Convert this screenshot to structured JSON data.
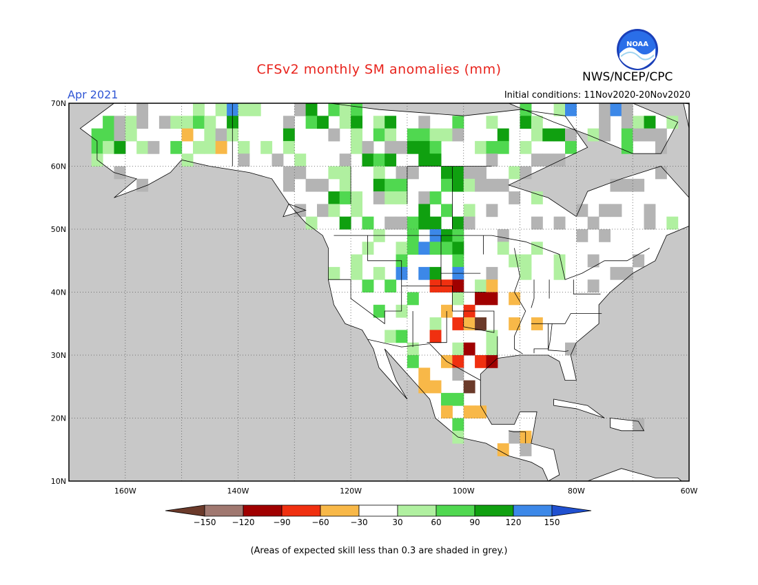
{
  "title": "CFSv2 monthly SM anomalies (mm)",
  "valid_month": "Apr 2021",
  "initial_conditions": "Initial conditions: 11Nov2020-20Nov2020",
  "organization": "NWS/NCEP/CPC",
  "logo_text": "NOAA",
  "map": {
    "lat_labels": [
      "70N",
      "60N",
      "50N",
      "40N",
      "30N",
      "20N",
      "10N"
    ],
    "lon_labels": [
      "160W",
      "140W",
      "120W",
      "100W",
      "80W",
      "60W"
    ],
    "lat_range": [
      10,
      70
    ],
    "lon_range": [
      -170,
      -60
    ],
    "grid": "dotted"
  },
  "colorbar": {
    "labels": [
      "-150",
      "-120",
      "-90",
      "-60",
      "-30",
      "30",
      "60",
      "90",
      "120",
      "150"
    ],
    "colors": [
      "#6b3a2a",
      "#a07870",
      "#a00000",
      "#f03010",
      "#f8b848",
      "#ffffff",
      "#b0f0a0",
      "#50d850",
      "#10a010",
      "#3c88e8",
      "#2050d0"
    ]
  },
  "footnote": "(Areas of expected skill less than 0.3 are shaded in grey.)",
  "colors": {
    "title": "#e8231c",
    "month": "#2f55d4",
    "ocean": "#c8c8c8",
    "skill_grey": "#b4b4b4"
  }
}
